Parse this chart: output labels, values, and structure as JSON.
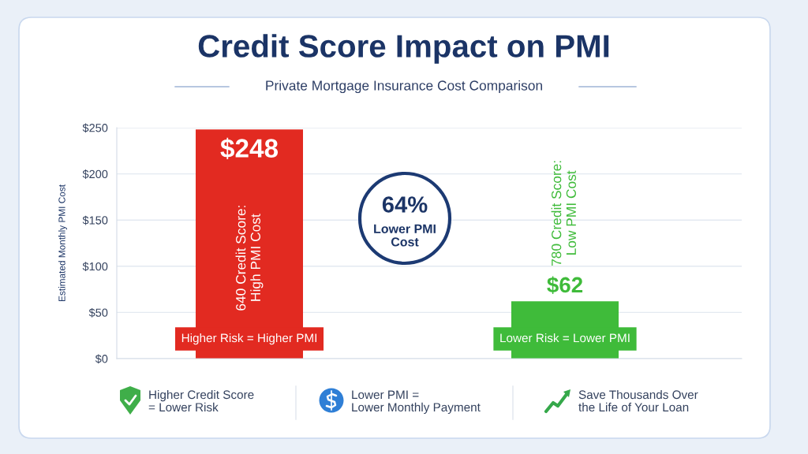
{
  "chart_data": {
    "type": "bar",
    "title": "Credit Score Impact on PMI",
    "subtitle": "Private Mortgage Insurance Cost Comparison",
    "ylabel": "Estimated Monthly PMI Cost",
    "categories": [
      "640 Credit Score:\nHigh PMI Cost",
      "780 Credit Score:\nLow PMI Cost"
    ],
    "values": [
      248,
      62
    ],
    "colors": [
      "#e22a21",
      "#3fbb3a"
    ],
    "value_labels": [
      "$248",
      "$62"
    ],
    "ylim": [
      0,
      250
    ],
    "yticks": [
      {
        "value": 0,
        "label": "$0"
      },
      {
        "value": 50,
        "label": "$50"
      },
      {
        "value": 100,
        "label": "$100"
      },
      {
        "value": 150,
        "label": "$150"
      },
      {
        "value": 200,
        "label": "$200"
      },
      {
        "value": 250,
        "label": "$250"
      }
    ],
    "grid": "y",
    "annotations": [
      "64%\nLower PMI\nCost",
      "Higher Risk = Higher PMI",
      "Lower Risk = Lower PMI",
      "Higher Credit Score\n= Lower Risk",
      "Lower PMI =\nLower Monthly Payment",
      "Save Thousands Over\nthe Life of Your Loan"
    ]
  }
}
